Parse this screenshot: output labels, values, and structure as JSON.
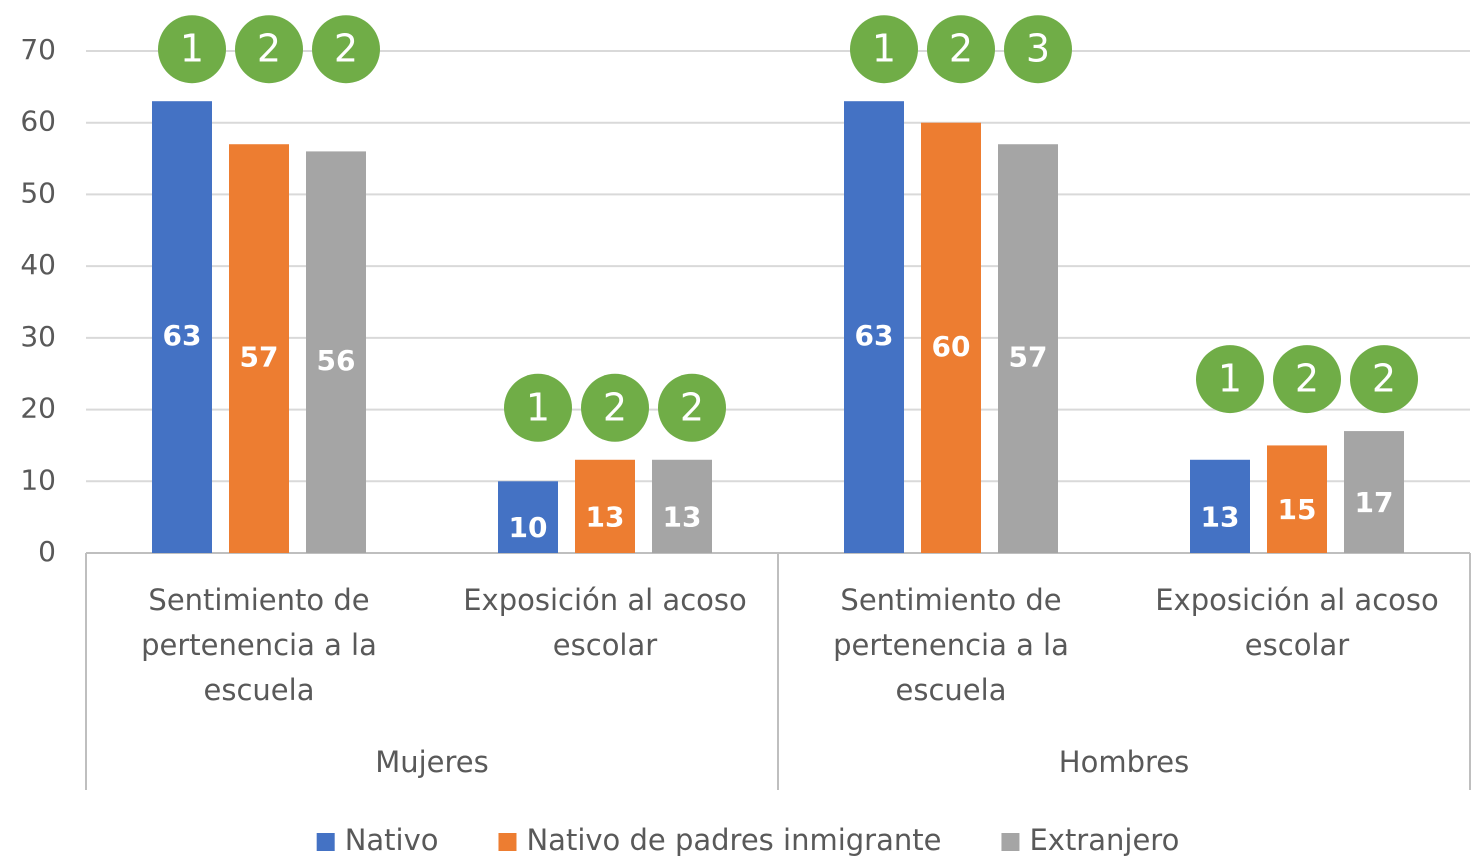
{
  "chart_data": {
    "type": "bar",
    "groups": [
      {
        "name": "Mujeres",
        "categories": [
          "Sentimiento de pertenencia a la escuela",
          "Exposición al acoso escolar"
        ]
      },
      {
        "name": "Hombres",
        "categories": [
          "Sentimiento de pertenencia a la escuela",
          "Exposición al acoso escolar"
        ]
      }
    ],
    "series": [
      {
        "name": "Nativo",
        "color": "#4472c4",
        "values": [
          63,
          10,
          63,
          13
        ],
        "badges": [
          1,
          1,
          1,
          1
        ]
      },
      {
        "name": "Nativo de padres inmigrante",
        "color": "#ed7d31",
        "values": [
          57,
          13,
          60,
          15
        ],
        "badges": [
          2,
          2,
          2,
          2
        ]
      },
      {
        "name": "Extranjero",
        "color": "#a5a5a5",
        "values": [
          56,
          13,
          57,
          17
        ],
        "badges": [
          2,
          2,
          3,
          2
        ]
      }
    ],
    "badge_color": "#70ad47",
    "ylim": [
      0,
      70
    ],
    "yticks": [
      0,
      10,
      20,
      30,
      40,
      50,
      60,
      70
    ],
    "grid": true,
    "legend": "bottom"
  }
}
